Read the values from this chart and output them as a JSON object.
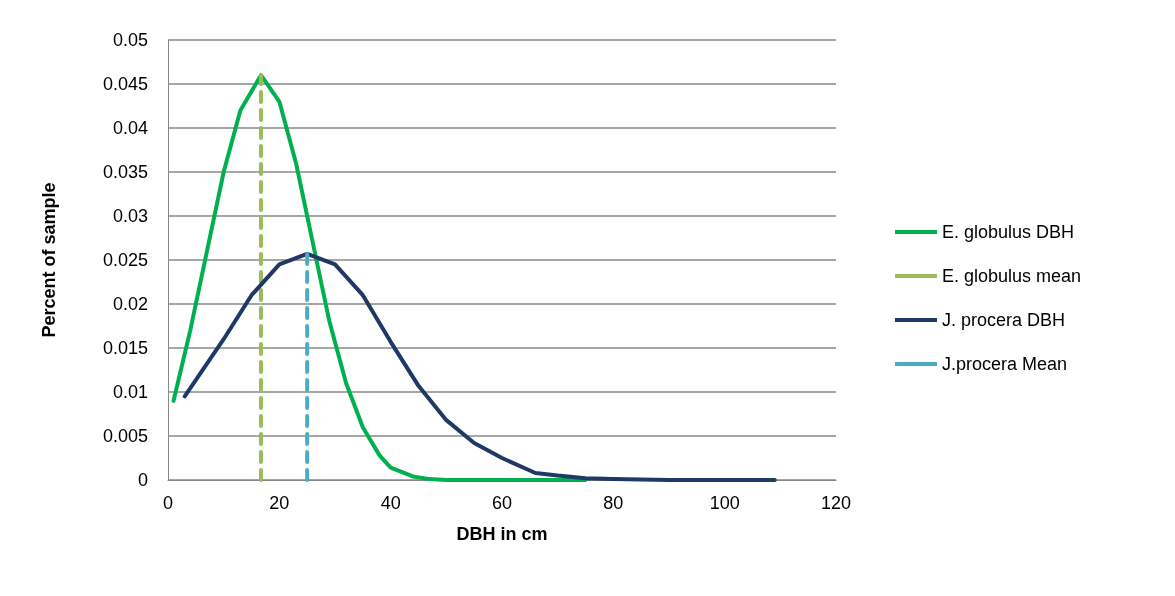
{
  "chart_data": {
    "type": "line",
    "xlabel": "DBH in cm",
    "ylabel": "Percent of sample",
    "xlim": [
      0,
      120
    ],
    "xticks": [
      0,
      20,
      40,
      60,
      80,
      100,
      120
    ],
    "ylim": [
      0,
      0.05
    ],
    "yticks": [
      0,
      0.005,
      0.01,
      0.015,
      0.02,
      0.025,
      0.03,
      0.035,
      0.04,
      0.045,
      0.05
    ],
    "grid": "y",
    "legend": "right",
    "marker": "none",
    "series": [
      {
        "name": "E. globulus DBH",
        "color": "#00b050",
        "line_style": "solid",
        "x": [
          1,
          4,
          7,
          10,
          13,
          16.7,
          20,
          23,
          26,
          29,
          32,
          35,
          38,
          40,
          44,
          47,
          50,
          60,
          75
        ],
        "values": [
          0.009,
          0.017,
          0.026,
          0.035,
          0.042,
          0.046,
          0.043,
          0.036,
          0.027,
          0.018,
          0.011,
          0.006,
          0.0028,
          0.0014,
          0.0004,
          0.0001,
          0,
          0,
          0
        ]
      },
      {
        "name": "E. globulus mean",
        "color": "#9bbb59",
        "line_style": "dashed",
        "x": [
          16.7,
          16.7
        ],
        "values": [
          0,
          0.046
        ]
      },
      {
        "name": "J. procera DBH",
        "color": "#1f3864",
        "line_style": "solid",
        "x": [
          3,
          10,
          15,
          20,
          25,
          30,
          35,
          40,
          45,
          50,
          55,
          60,
          66,
          70,
          75,
          80,
          90,
          109
        ],
        "values": [
          0.0095,
          0.016,
          0.021,
          0.0245,
          0.0257,
          0.0245,
          0.021,
          0.0157,
          0.0107,
          0.0068,
          0.0042,
          0.0025,
          0.0008,
          0.0005,
          0.0002,
          0.0001,
          0,
          0
        ]
      },
      {
        "name": "J.procera Mean",
        "color": "#4bacc6",
        "line_style": "dashed",
        "x": [
          25,
          25
        ],
        "values": [
          0,
          0.0257
        ]
      }
    ]
  }
}
